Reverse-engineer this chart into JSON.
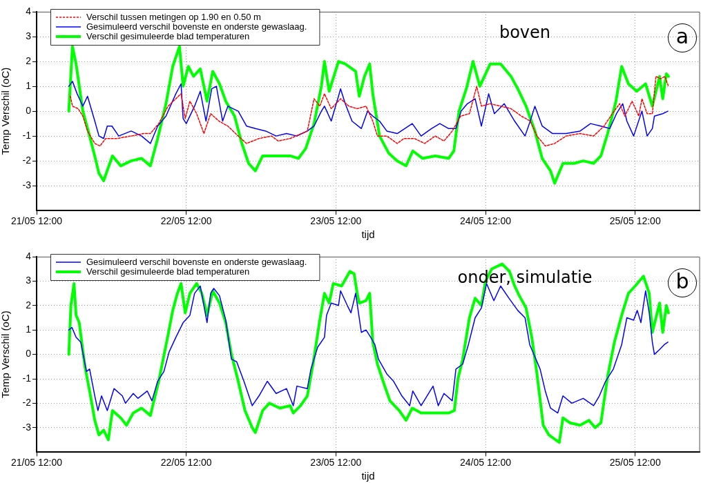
{
  "chart_data": [
    {
      "type": "line",
      "xlabel": "tijd",
      "ylabel": "Temp Verschil (oC)",
      "xlim": [
        "--05-21T12:00",
        "--05-25T22:20"
      ],
      "xticks": [
        {
          "value": "--05-21T12:00",
          "label": "21/05 12:00"
        },
        {
          "value": "--05-22T12:00",
          "label": "22/05 12:00"
        },
        {
          "value": "--05-23T12:00",
          "label": "23/05 12:00"
        },
        {
          "value": "--05-24T12:00",
          "label": "24/05 12:00"
        },
        {
          "value": "--05-25T12:00",
          "label": "25/05 12:00"
        }
      ],
      "ylim": [
        -4,
        4
      ],
      "yticks": [
        -3,
        -2,
        -1,
        0,
        1,
        2,
        3,
        4
      ],
      "grid": true,
      "legend": "top left",
      "marker": "none",
      "annotations": [
        "boven",
        "a"
      ],
      "series": [
        {
          "name": "Verschil tussen metingen op 1.90 en 0.50 m",
          "color": "#ff0000",
          "line_style": "dashed",
          "x": [
            "--05-21T17:25",
            "--05-21T17:45",
            "--05-21T18:40",
            "--05-21T19:25",
            "--05-21T20:10",
            "--05-21T21:20",
            "--05-21T22:10",
            "--05-21T23:05",
            "--05-22T00:55",
            "--05-22T03:10",
            "--05-22T05:10",
            "--05-22T06:15",
            "--05-22T07:35",
            "--05-22T09:05",
            "--05-22T10:20",
            "--05-22T11:10",
            "--05-22T11:50",
            "--05-22T12:35",
            "--05-22T13:40",
            "--05-22T14:50",
            "--05-22T15:55",
            "--05-22T17:15",
            "--05-22T18:40",
            "--05-22T20:20",
            "--05-22T21:40",
            "--05-22T23:40",
            "--05-23T01:40",
            "--05-23T02:45",
            "--05-23T04:40",
            "--05-23T07:25",
            "--05-23T08:30",
            "--05-23T09:25",
            "--05-23T10:10",
            "--05-23T11:15",
            "--05-23T12:45",
            "--05-23T14:05",
            "--05-23T15:25",
            "--05-23T16:50",
            "--05-23T17:55",
            "--05-23T18:40",
            "--05-23T20:10",
            "--05-23T21:50",
            "--05-23T22:55",
            "--05-24T00:35",
            "--05-24T02:15",
            "--05-24T03:55",
            "--05-24T05:20",
            "--05-24T06:40",
            "--05-24T08:00",
            "--05-24T09:25",
            "--05-24T10:35",
            "--05-24T11:20",
            "--05-24T12:45",
            "--05-24T14:25",
            "--05-24T16:05",
            "--05-24T17:45",
            "--05-24T19:10",
            "--05-24T20:15",
            "--05-24T21:35",
            "--05-24T23:05",
            "--05-25T00:55",
            "--05-25T03:10",
            "--05-25T05:20",
            "--05-25T07:00",
            "--05-25T08:20",
            "--05-25T09:30",
            "--05-25T10:20",
            "--05-25T11:30",
            "--05-25T12:35",
            "--05-25T13:05",
            "--05-25T13:55",
            "--05-25T14:45",
            "--05-25T15:20",
            "--05-25T16:05",
            "--05-25T16:45",
            "--05-25T17:20"
          ],
          "values": [
            0.6,
            0.2,
            0.1,
            -0.2,
            -0.8,
            -1.3,
            -1.4,
            -1.1,
            -1.1,
            -1.0,
            -0.9,
            -0.9,
            -0.5,
            0.2,
            0.5,
            0.7,
            -0.3,
            0.4,
            -0.1,
            -0.9,
            -0.1,
            -0.4,
            -0.6,
            -1.0,
            -1.3,
            -1.1,
            -1.0,
            -1.2,
            -1.1,
            -0.8,
            0.5,
            0.2,
            0.7,
            0.1,
            0.5,
            0.2,
            0.1,
            0.2,
            -0.4,
            -1.0,
            -1.0,
            -1.3,
            -1.1,
            -1.1,
            -1.3,
            -1.0,
            -1.2,
            -0.8,
            -0.2,
            -0.1,
            1.0,
            0.2,
            0.3,
            0.2,
            0.1,
            -0.2,
            -0.4,
            -1.0,
            -1.4,
            -1.3,
            -1.0,
            -0.9,
            -1.0,
            -0.6,
            -0.1,
            0.3,
            -0.2,
            0.4,
            -0.2,
            0.5,
            -0.1,
            -0.1,
            1.4,
            1.3,
            1.4,
            1.0
          ]
        },
        {
          "name": "Gesimuleerd verschil bovenste en onderste gewaslaag.",
          "color": "#0000ff",
          "line_style": "solid",
          "x": [
            "--05-21T17:10",
            "--05-21T17:45",
            "--05-21T18:30",
            "--05-21T19:25",
            "--05-21T20:10",
            "--05-21T21:20",
            "--05-21T22:00",
            "--05-21T22:45",
            "--05-21T23:20",
            "--05-22T00:05",
            "--05-22T01:10",
            "--05-22T03:10",
            "--05-22T04:50",
            "--05-22T06:15",
            "--05-22T07:25",
            "--05-22T08:45",
            "--05-22T10:20",
            "--05-22T11:10",
            "--05-22T11:30",
            "--05-22T12:00",
            "--05-22T13:20",
            "--05-22T14:15",
            "--05-22T15:10",
            "--05-22T16:05",
            "--05-22T16:50",
            "--05-22T17:50",
            "--05-22T18:40",
            "--05-22T20:20",
            "--05-22T21:40",
            "--05-22T23:05",
            "--05-23T00:45",
            "--05-23T02:25",
            "--05-23T04:05",
            "--05-23T05:45",
            "--05-23T07:25",
            "--05-23T08:30",
            "--05-23T09:40",
            "--05-23T10:10",
            "--05-23T11:15",
            "--05-23T12:25",
            "--05-23T12:45",
            "--05-23T13:30",
            "--05-23T14:35",
            "--05-23T16:05",
            "--05-23T17:05",
            "--05-23T17:55",
            "--05-23T19:00",
            "--05-23T20:10",
            "--05-23T21:50",
            "--05-24T00:15",
            "--05-24T01:40",
            "--05-24T03:20",
            "--05-24T04:40",
            "--05-24T06:05",
            "--05-24T07:15",
            "--05-24T08:05",
            "--05-24T09:05",
            "--05-24T10:20",
            "--05-24T11:20",
            "--05-24T12:30",
            "--05-24T13:25",
            "--05-24T15:00",
            "--05-24T16:40",
            "--05-24T18:20",
            "--05-24T19:10",
            "--05-24T19:55",
            "--05-24T21:05",
            "--05-24T22:45",
            "--05-25T00:55",
            "--05-25T03:10",
            "--05-25T04:50",
            "--05-25T06:30",
            "--05-25T07:55",
            "--05-25T09:00",
            "--05-25T10:00",
            "--05-25T10:40",
            "--05-25T11:45",
            "--05-25T13:05",
            "--05-25T13:55",
            "--05-25T14:45",
            "--05-25T15:05",
            "--05-25T16:25",
            "--05-25T17:15"
          ],
          "values": [
            1.0,
            1.2,
            0.7,
            0.2,
            0.6,
            -0.4,
            -1.0,
            -1.1,
            -0.6,
            -0.6,
            -1.0,
            -0.8,
            -1.0,
            -1.3,
            -0.6,
            -0.2,
            0.7,
            1.1,
            -0.3,
            -0.5,
            0.2,
            0.8,
            -0.4,
            0.9,
            1.0,
            -0.4,
            0.2,
            0.0,
            -0.6,
            -0.7,
            -0.8,
            -1.0,
            -0.9,
            -1.0,
            -0.8,
            -0.6,
            0.0,
            0.2,
            -0.4,
            0.6,
            0.9,
            0.3,
            -0.4,
            -0.7,
            0.0,
            -0.2,
            -0.4,
            -0.8,
            -0.9,
            -0.5,
            -1.0,
            -0.7,
            -0.5,
            -0.7,
            -0.7,
            0.0,
            0.3,
            0.5,
            -0.6,
            0.7,
            -0.1,
            0.3,
            -0.4,
            -1.0,
            -0.4,
            0.2,
            -0.6,
            -0.9,
            -0.9,
            -0.8,
            -0.5,
            -0.6,
            -0.7,
            -0.1,
            0.3,
            -0.4,
            -1.0,
            0.0,
            -1.0,
            -0.7,
            -0.2,
            -0.1,
            0.0
          ]
        },
        {
          "name": "Verschil gesimuleerde blad temperaturen",
          "color": "#00ff00",
          "line_style": "solid",
          "x": [
            "--05-21T17:10",
            "--05-21T17:45",
            "--05-21T18:20",
            "--05-21T19:25",
            "--05-21T20:30",
            "--05-21T21:25",
            "--05-21T22:00",
            "--05-21T22:45",
            "--05-22T00:10",
            "--05-22T01:30",
            "--05-22T03:10",
            "--05-22T04:50",
            "--05-22T06:15",
            "--05-22T07:25",
            "--05-22T08:45",
            "--05-22T09:50",
            "--05-22T10:55",
            "--05-22T11:30",
            "--05-22T12:20",
            "--05-22T13:10",
            "--05-22T14:15",
            "--05-22T15:20",
            "--05-22T16:15",
            "--05-22T17:20",
            "--05-22T18:20",
            "--05-22T19:45",
            "--05-22T20:55",
            "--05-22T22:00",
            "--05-22T23:05",
            "--05-23T00:15",
            "--05-23T02:25",
            "--05-23T04:40",
            "--05-23T06:00",
            "--05-23T07:10",
            "--05-23T08:30",
            "--05-23T09:40",
            "--05-23T10:10",
            "--05-23T10:55",
            "--05-23T12:25",
            "--05-23T13:30",
            "--05-23T15:10",
            "--05-23T15:45",
            "--05-23T16:35",
            "--05-23T17:25",
            "--05-23T17:55",
            "--05-23T19:00",
            "--05-23T20:30",
            "--05-23T21:50",
            "--05-23T23:15",
            "--05-24T00:20",
            "--05-24T01:55",
            "--05-24T03:55",
            "--05-24T06:05",
            "--05-24T06:55",
            "--05-24T07:45",
            "--05-24T08:55",
            "--05-24T10:00",
            "--05-24T11:05",
            "--05-24T12:00",
            "--05-24T12:45",
            "--05-24T14:25",
            "--05-24T16:05",
            "--05-24T17:10",
            "--05-24T18:30",
            "--05-24T19:55",
            "--05-24T21:05",
            "--05-24T22:25",
            "--05-24T23:05",
            "--05-25T00:25",
            "--05-25T02:15",
            "--05-25T03:40",
            "--05-25T05:20",
            "--05-25T06:30",
            "--05-25T07:35",
            "--05-25T08:55",
            "--05-25T09:50",
            "--05-25T10:55",
            "--05-25T12:15",
            "--05-25T13:40",
            "--05-25T14:45",
            "--05-25T15:55",
            "--05-25T16:25",
            "--05-25T17:00",
            "--05-25T17:20"
          ],
          "values": [
            0.0,
            2.6,
            1.9,
            0.0,
            -1.0,
            -1.9,
            -2.5,
            -2.8,
            -1.8,
            -2.2,
            -2.0,
            -1.9,
            -2.2,
            -1.1,
            0.3,
            1.8,
            2.6,
            1.0,
            1.8,
            1.4,
            1.7,
            0.4,
            1.6,
            1.1,
            0.4,
            -0.2,
            -1.3,
            -2.1,
            -2.4,
            -1.8,
            -1.8,
            -1.8,
            -1.9,
            -1.5,
            -0.5,
            1.0,
            2.0,
            0.8,
            2.0,
            1.9,
            1.6,
            0.6,
            1.4,
            1.9,
            0.7,
            -1.0,
            -1.7,
            -2.0,
            -2.2,
            -1.6,
            -1.9,
            -1.8,
            -1.9,
            -1.6,
            0.0,
            0.9,
            2.0,
            1.0,
            1.5,
            1.9,
            1.9,
            1.4,
            0.9,
            0.2,
            -0.8,
            -1.9,
            -2.4,
            -2.9,
            -2.1,
            -2.1,
            -2.0,
            -2.1,
            -1.8,
            -0.9,
            0.4,
            1.8,
            1.1,
            0.8,
            1.1,
            0.2,
            1.4,
            0.5,
            1.5,
            1.4
          ]
        }
      ]
    },
    {
      "type": "line",
      "xlabel": "tijd",
      "ylabel": "Temp Verschil (oC)",
      "xlim": [
        "--05-21T12:00",
        "--05-25T22:20"
      ],
      "xticks": [
        {
          "value": "--05-21T12:00",
          "label": "21/05 12:00"
        },
        {
          "value": "--05-22T12:00",
          "label": "22/05 12:00"
        },
        {
          "value": "--05-23T12:00",
          "label": "23/05 12:00"
        },
        {
          "value": "--05-24T12:00",
          "label": "24/05 12:00"
        },
        {
          "value": "--05-25T12:00",
          "label": "25/05 12:00"
        }
      ],
      "ylim": [
        -4,
        4
      ],
      "yticks": [
        -3,
        -2,
        -1,
        0,
        1,
        2,
        3,
        4
      ],
      "grid": true,
      "legend": "top left",
      "marker": "none",
      "annotations": [
        "onder, simulatie",
        "b"
      ],
      "series": [
        {
          "name": "Gesimuleerd verschil bovenste en onderste gewaslaag.",
          "color": "#0000ff",
          "line_style": "solid",
          "x": [
            "--05-21T17:10",
            "--05-21T17:40",
            "--05-21T18:20",
            "--05-21T19:05",
            "--05-21T20:00",
            "--05-21T20:30",
            "--05-21T21:20",
            "--05-21T21:50",
            "--05-21T22:25",
            "--05-21T23:20",
            "--05-22T00:25",
            "--05-22T01:45",
            "--05-22T02:15",
            "--05-22T03:30",
            "--05-22T04:15",
            "--05-22T05:45",
            "--05-22T06:30",
            "--05-22T07:25",
            "--05-22T08:25",
            "--05-22T09:15",
            "--05-22T10:20",
            "--05-22T11:30",
            "--05-22T12:35",
            "--05-22T13:20",
            "--05-22T14:15",
            "--05-22T15:20",
            "--05-22T15:55",
            "--05-22T16:25",
            "--05-22T17:20",
            "--05-22T18:20",
            "--05-22T19:15",
            "--05-22T20:05",
            "--05-22T21:15",
            "--05-22T22:35",
            "--05-22T23:40",
            "--05-23T01:00",
            "--05-23T02:25",
            "--05-23T04:05",
            "--05-23T05:10",
            "--05-23T05:45",
            "--05-23T07:25",
            "--05-23T08:00",
            "--05-23T09:05",
            "--05-23T10:10",
            "--05-23T10:30",
            "--05-23T11:15",
            "--05-23T12:25",
            "--05-23T12:45",
            "--05-23T13:50",
            "--05-23T14:25",
            "--05-23T15:10",
            "--05-23T16:05",
            "--05-23T16:50",
            "--05-23T17:35",
            "--05-23T18:15",
            "--05-23T18:50",
            "--05-23T20:10",
            "--05-23T21:15",
            "--05-23T22:35",
            "--05-23T23:50",
            "--05-24T00:20",
            "--05-24T01:40",
            "--05-24T03:35",
            "--05-24T04:25",
            "--05-24T05:20",
            "--05-24T06:40",
            "--05-24T07:15",
            "--05-24T08:20",
            "--05-24T09:15",
            "--05-24T10:20",
            "--05-24T11:20",
            "--05-24T12:10",
            "--05-24T13:20",
            "--05-24T14:25",
            "--05-24T15:45",
            "--05-24T17:10",
            "--05-24T18:20",
            "--05-24T19:05",
            "--05-24T19:55",
            "--05-24T20:45",
            "--05-24T21:35",
            "--05-24T22:25",
            "--05-24T23:35",
            "--05-25T00:25",
            "--05-25T01:50",
            "--05-25T03:40",
            "--05-25T05:20",
            "--05-25T06:15",
            "--05-25T07:15",
            "--05-25T08:30",
            "--05-25T09:50",
            "--05-25T10:40",
            "--05-25T11:45",
            "--05-25T12:20",
            "--05-25T12:55",
            "--05-25T13:40",
            "--05-25T14:15",
            "--05-25T14:45",
            "--05-25T15:05",
            "--05-25T15:55",
            "--05-25T16:40",
            "--05-25T17:15"
          ],
          "values": [
            1.0,
            1.1,
            0.7,
            0.5,
            -0.7,
            -0.6,
            -1.7,
            -2.3,
            -1.7,
            -2.3,
            -1.4,
            -1.7,
            -2.0,
            -1.6,
            -1.8,
            -1.5,
            -1.9,
            -1.1,
            -0.7,
            0.1,
            0.7,
            1.3,
            1.6,
            2.5,
            2.8,
            1.3,
            2.5,
            2.7,
            2.4,
            1.4,
            -0.2,
            -0.3,
            -1.1,
            -2.1,
            -1.7,
            -1.1,
            -1.6,
            -1.4,
            -2.1,
            -1.3,
            -1.4,
            -0.6,
            0.3,
            0.7,
            1.6,
            2.1,
            2.0,
            2.6,
            2.0,
            1.7,
            2.5,
            0.9,
            1.0,
            0.7,
            0.4,
            -0.2,
            -0.8,
            -1.1,
            -1.7,
            -2.1,
            -1.5,
            -2.1,
            -1.3,
            -2.1,
            -1.6,
            -1.9,
            -0.6,
            -0.4,
            0.4,
            1.5,
            1.9,
            2.9,
            2.2,
            2.8,
            2.3,
            1.8,
            1.5,
            0.4,
            -0.1,
            -0.6,
            -1.5,
            -2.2,
            -2.4,
            -1.7,
            -2.0,
            -1.8,
            -2.1,
            -1.7,
            -1.1,
            -0.6,
            0.4,
            1.5,
            1.4,
            1.8,
            1.3,
            2.6,
            1.7,
            0.5,
            0.0,
            0.2,
            0.4,
            0.5
          ]
        },
        {
          "name": "Verschil gesimuleerde blad temperaturen",
          "color": "#00ff00",
          "line_style": "solid",
          "x": [
            "--05-21T17:10",
            "--05-21T17:30",
            "--05-21T18:00",
            "--05-21T18:20",
            "--05-21T18:50",
            "--05-21T19:45",
            "--05-21T20:30",
            "--05-21T21:20",
            "--05-21T22:00",
            "--05-21T22:45",
            "--05-21T23:30",
            "--05-22T00:10",
            "--05-22T01:30",
            "--05-22T02:25",
            "--05-22T03:30",
            "--05-22T04:50",
            "--05-22T06:15",
            "--05-22T07:35",
            "--05-22T09:05",
            "--05-22T09:50",
            "--05-22T10:35",
            "--05-22T11:10",
            "--05-22T11:50",
            "--05-22T12:35",
            "--05-22T13:40",
            "--05-22T14:30",
            "--05-22T15:20",
            "--05-22T16:15",
            "--05-22T17:20",
            "--05-22T18:20",
            "--05-22T19:15",
            "--05-22T20:20",
            "--05-22T21:25",
            "--05-22T22:35",
            "--05-22T23:05",
            "--05-23T00:15",
            "--05-23T01:20",
            "--05-23T03:00",
            "--05-23T04:40",
            "--05-23T05:10",
            "--05-23T06:20",
            "--05-23T07:25",
            "--05-23T08:20",
            "--05-23T09:25",
            "--05-23T10:10",
            "--05-23T10:55",
            "--05-23T11:35",
            "--05-23T12:55",
            "--05-23T14:15",
            "--05-23T14:55",
            "--05-23T15:25",
            "--05-23T15:45",
            "--05-23T16:50",
            "--05-23T17:25",
            "--05-23T17:55",
            "--05-23T18:40",
            "--05-23T19:50",
            "--05-23T20:40",
            "--05-23T22:10",
            "--05-23T23:15",
            "--05-24T00:15",
            "--05-24T01:40",
            "--05-24T03:55",
            "--05-24T06:05",
            "--05-24T07:00",
            "--05-24T07:35",
            "--05-24T08:20",
            "--05-24T09:25",
            "--05-24T10:20",
            "--05-24T11:20",
            "--05-24T12:00",
            "--05-24T13:00",
            "--05-24T14:40",
            "--05-24T15:50",
            "--05-24T16:40",
            "--05-24T17:25",
            "--05-24T18:30",
            "--05-24T19:25",
            "--05-24T20:15",
            "--05-24T21:15",
            "--05-24T22:10",
            "--05-24T23:15",
            "--05-24T23:50",
            "--05-25T00:25",
            "--05-25T01:30",
            "--05-25T03:10",
            "--05-25T04:35",
            "--05-25T05:35",
            "--05-25T06:30",
            "--05-25T07:35",
            "--05-25T08:40",
            "--05-25T09:50",
            "--05-25T10:55",
            "--05-25T12:00",
            "--05-25T13:20",
            "--05-25T14:15",
            "--05-25T14:45",
            "--05-25T15:20",
            "--05-25T15:55",
            "--05-25T16:25",
            "--05-25T17:00",
            "--05-25T17:20"
          ],
          "values": [
            0.0,
            2.0,
            2.9,
            1.6,
            1.3,
            -0.5,
            -1.5,
            -2.7,
            -3.3,
            -3.1,
            -3.5,
            -2.3,
            -2.6,
            -2.9,
            -2.4,
            -2.2,
            -2.5,
            -1.1,
            0.8,
            1.8,
            2.5,
            2.9,
            1.7,
            2.5,
            2.9,
            2.5,
            1.6,
            2.6,
            2.1,
            1.3,
            0.0,
            -1.1,
            -2.3,
            -3.0,
            -3.2,
            -2.3,
            -2.0,
            -2.2,
            -2.1,
            -2.4,
            -2.1,
            -1.7,
            -0.4,
            1.4,
            2.5,
            2.1,
            2.9,
            2.8,
            3.4,
            3.3,
            2.5,
            2.1,
            2.2,
            2.5,
            0.5,
            -0.4,
            -1.3,
            -1.9,
            -2.3,
            -2.7,
            -2.2,
            -2.4,
            -2.4,
            -2.4,
            -2.3,
            -1.0,
            -0.2,
            1.5,
            2.3,
            2.0,
            3.0,
            3.5,
            3.7,
            3.4,
            2.8,
            2.4,
            1.9,
            0.7,
            -0.8,
            -2.9,
            -3.3,
            -3.5,
            -3.6,
            -2.6,
            -2.8,
            -2.9,
            -2.7,
            -3.0,
            -2.8,
            -0.9,
            0.5,
            1.6,
            2.5,
            2.8,
            3.2,
            2.5,
            0.9,
            1.5,
            2.1,
            0.9,
            2.0,
            1.7
          ]
        }
      ]
    }
  ]
}
